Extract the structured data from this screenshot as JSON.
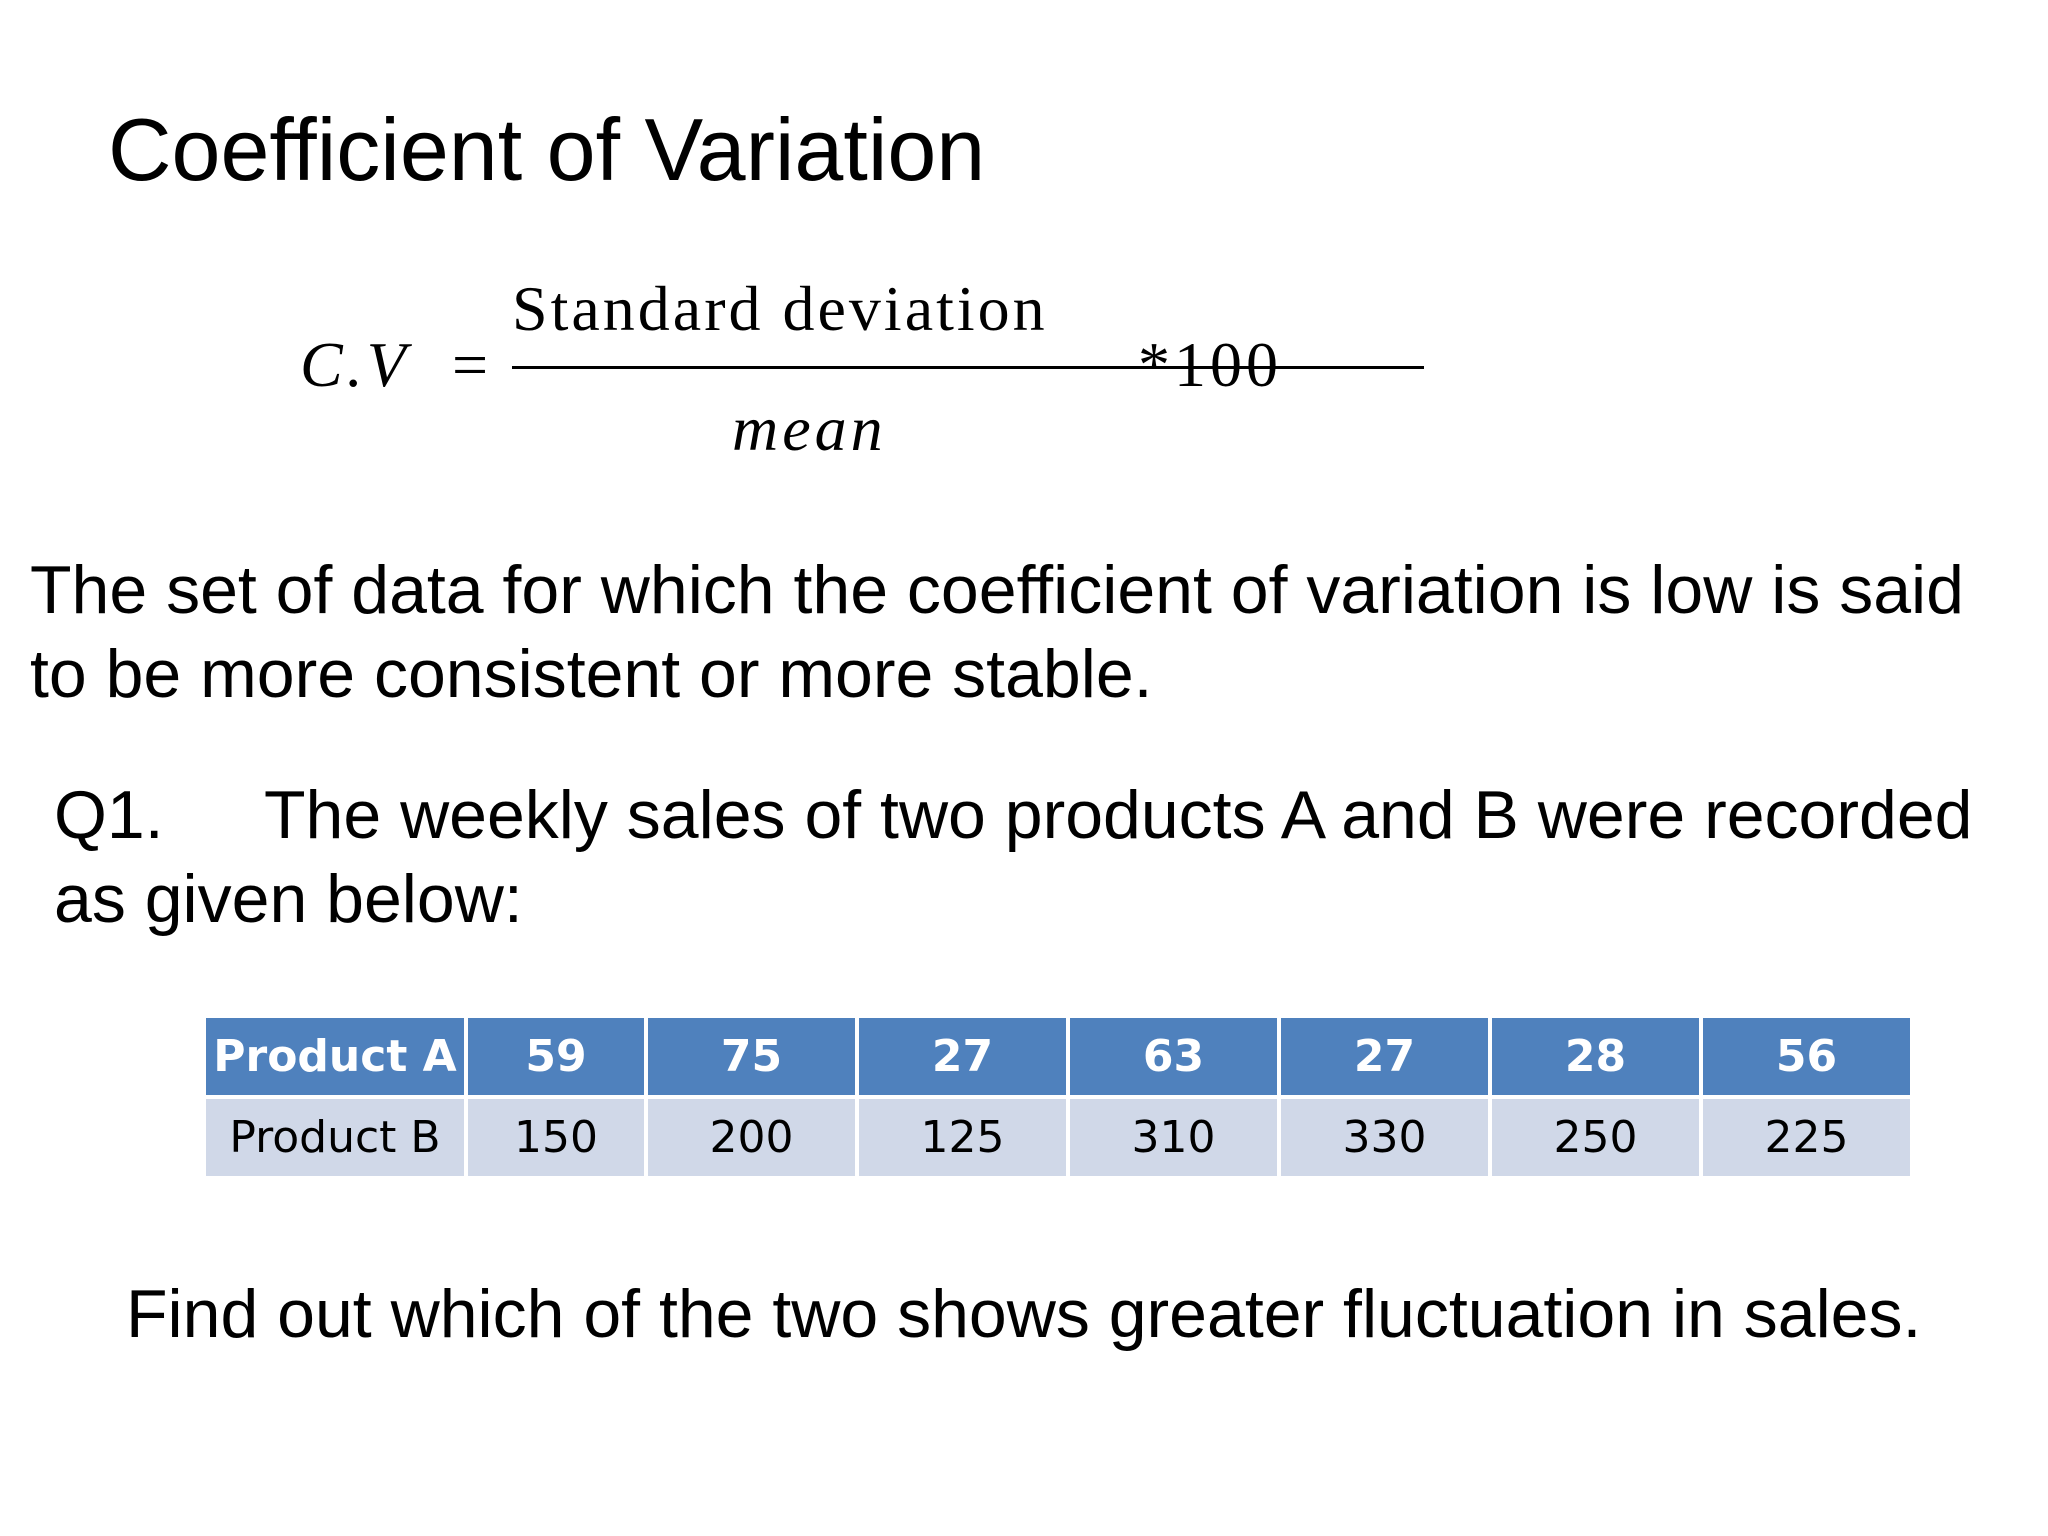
{
  "slide": {
    "title": "Coefficient of Variation"
  },
  "formula": {
    "lhs": "C.V",
    "equals": "=",
    "numerator": "Standard deviation",
    "denominator": "mean",
    "multiplier": "*100"
  },
  "paragraphs": {
    "definition_line1": "The set of data for which the coefficient of variation is low is said",
    "definition_line2": "to be more consistent  or more stable.",
    "question_label": "Q1.",
    "question_line1": "The weekly sales of two products A and B were recorded",
    "question_line2": "as given below:",
    "task": "Find out which of the two shows greater fluctuation in sales."
  },
  "table": {
    "rows": [
      {
        "label": "Product A",
        "values": [
          "59",
          "75",
          "27",
          "63",
          "27",
          "28",
          "56"
        ]
      },
      {
        "label": "Product B",
        "values": [
          "150",
          "200",
          "125",
          "310",
          "330",
          "250",
          "225"
        ]
      }
    ]
  },
  "colors": {
    "header_fill": "#4f81bd",
    "body_fill": "#d0d8e8",
    "text": "#000000"
  }
}
